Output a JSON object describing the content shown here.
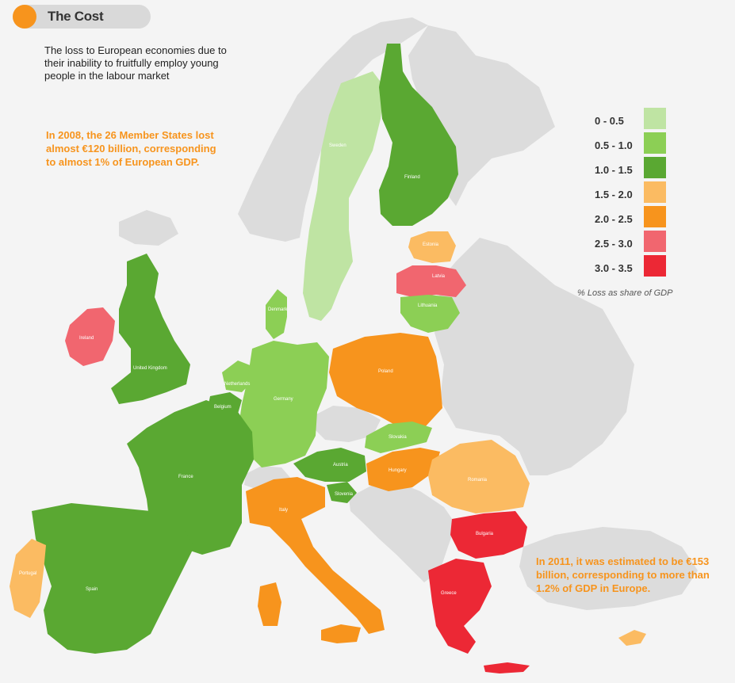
{
  "header": {
    "title": "The Cost"
  },
  "intro": "The loss to European economies due to their inability to fruitfully employ young people in the labour market",
  "note_2008": "In 2008, the 26 Member States lost almost €120 billion, corresponding to almost 1% of European GDP.",
  "note_2011": "In 2011, it was estimated to be €153 billion, corresponding to more than 1.2% of GDP in Europe.",
  "legend": {
    "caption": "% Loss as share of GDP",
    "items": [
      {
        "label": "0 - 0.5",
        "color": "#bfe4a3"
      },
      {
        "label": "0.5 - 1.0",
        "color": "#8ccf55"
      },
      {
        "label": "1.0 - 1.5",
        "color": "#5aa832"
      },
      {
        "label": "1.5 - 2.0",
        "color": "#fbbb62"
      },
      {
        "label": "2.0 - 2.5",
        "color": "#f7941d"
      },
      {
        "label": "2.5 - 3.0",
        "color": "#f1666f"
      },
      {
        "label": "3.0 - 3.5",
        "color": "#ec2835"
      }
    ]
  },
  "non_member_color": "#dcdcdc",
  "countries": {
    "sweden": "Sweden",
    "finland": "Finland",
    "estonia": "Estonia",
    "latvia": "Latvia",
    "lithuania": "Lithuania",
    "denmark": "Denmark",
    "ireland": "Ireland",
    "uk": "United Kingdom",
    "netherlands": "Netherlands",
    "belgium": "Belgium",
    "germany": "Germany",
    "poland": "Poland",
    "slovakia": "Slovakia",
    "austria": "Austria",
    "hungary": "Hungary",
    "slovenia": "Slovenia",
    "romania": "Romania",
    "bulgaria": "Bulgaria",
    "greece": "Greece",
    "france": "France",
    "italy": "Italy",
    "spain": "Spain",
    "portugal": "Portugal"
  }
}
